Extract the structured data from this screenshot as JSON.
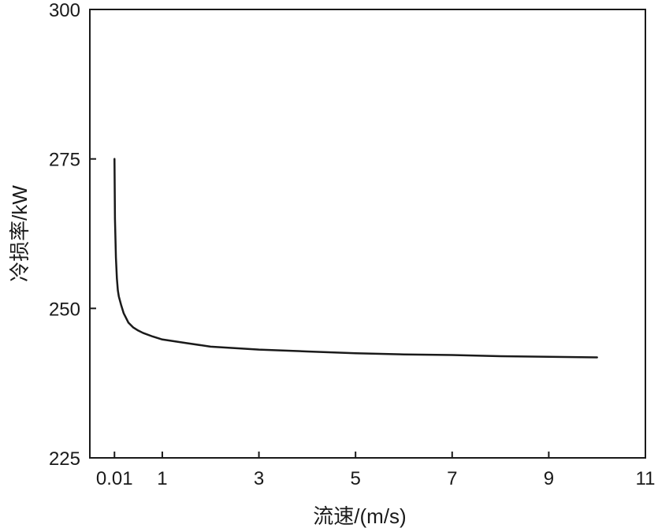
{
  "chart_data": {
    "type": "line",
    "xlabel": "流速/(m/s)",
    "ylabel": "冷损率/kW",
    "xlim": [
      -0.5,
      11
    ],
    "ylim": [
      225,
      300
    ],
    "x_ticks": [
      0.01,
      1,
      3,
      5,
      7,
      9,
      11
    ],
    "x_tick_labels": [
      "0.01",
      "1",
      "3",
      "5",
      "7",
      "9",
      "11"
    ],
    "y_ticks": [
      225,
      250,
      275,
      300
    ],
    "y_tick_labels": [
      "225",
      "250",
      "275",
      "300"
    ],
    "grid": false,
    "series": [
      {
        "color": "#1a1a1a",
        "x": [
          0.01,
          0.02,
          0.04,
          0.06,
          0.08,
          0.1,
          0.15,
          0.2,
          0.3,
          0.4,
          0.5,
          0.6,
          0.8,
          1.0,
          1.5,
          2.0,
          3.0,
          4.0,
          5.0,
          6.0,
          7.0,
          8.0,
          9.0,
          10.0
        ],
        "y": [
          275.0,
          265.0,
          258.5,
          255.0,
          253.0,
          252.0,
          250.5,
          249.2,
          247.6,
          246.8,
          246.3,
          245.9,
          245.3,
          244.8,
          244.2,
          243.6,
          243.1,
          242.8,
          242.5,
          242.3,
          242.2,
          242.0,
          241.9,
          241.8
        ]
      }
    ]
  }
}
